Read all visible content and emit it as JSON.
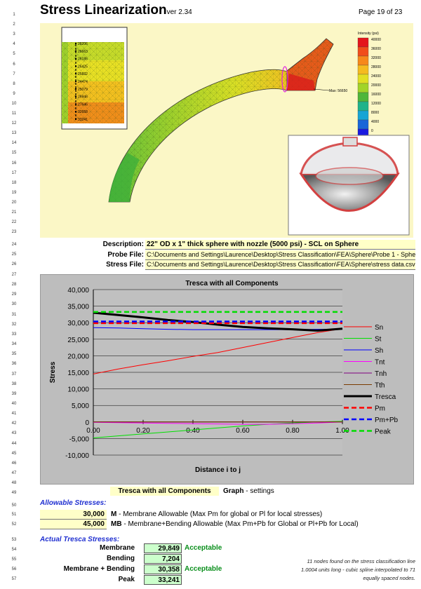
{
  "header": {
    "title": "Stress Linearization",
    "version": "ver 2.34",
    "page": "Page 19 of 23"
  },
  "row_numbers": [
    "1",
    "2",
    "3",
    "4",
    "5",
    "6",
    "7",
    "8",
    "9",
    "10",
    "11",
    "12",
    "13",
    "14",
    "15",
    "16",
    "17",
    "18",
    "19",
    "20",
    "21",
    "22",
    "23",
    "24",
    "25",
    "26",
    "27",
    "28",
    "29",
    "30",
    "31",
    "32",
    "33",
    "34",
    "35",
    "36",
    "37",
    "38",
    "39",
    "40",
    "41",
    "42",
    "43",
    "44",
    "45",
    "46",
    "47",
    "48",
    "49",
    "50",
    "51",
    "52",
    "53",
    "54",
    "55",
    "56",
    "57"
  ],
  "fea_image": {
    "legend_title": "Intensity (psi)",
    "legend_ticks": [
      "40000",
      "36000",
      "32000",
      "28000",
      "24000",
      "20000",
      "16000",
      "12000",
      "8000",
      "4000",
      "0"
    ],
    "legend_colors": [
      "#e4151c",
      "#f14d1a",
      "#f7881a",
      "#f5bb1f",
      "#e2df23",
      "#a2d428",
      "#4fb63a",
      "#1fb38a",
      "#17a4d4",
      "#1a66d8",
      "#1a1ae0"
    ],
    "max_label": "Max: 56650",
    "node_labels": [
      "28206",
      "26663",
      "26185",
      "26425",
      "25832",
      "24474",
      "25079",
      "26946",
      "27646",
      "32658",
      "33241"
    ]
  },
  "fields": {
    "description_label": "Description:",
    "description_value": "22\" OD x 1\" thick sphere with nozzle (5000 psi) - SCL on Sphere",
    "probe_label": "Probe File:",
    "probe_value": "C:\\Documents and Settings\\Laurence\\Desktop\\Stress Classification\\FEA\\Sphere\\Probe 1 - Sphere.csv",
    "stress_label": "Stress File:",
    "stress_value": "C:\\Documents and Settings\\Laurence\\Desktop\\Stress Classification\\FEA\\Sphere\\stress data.csv"
  },
  "chart_data": {
    "type": "line",
    "title": "Tresca with all Components",
    "xlabel": "Distance i to j",
    "ylabel": "Stress",
    "xlim": [
      0,
      1
    ],
    "ylim": [
      -10000,
      40000
    ],
    "x_ticks": [
      "0.00",
      "0.20",
      "0.40",
      "0.60",
      "0.80",
      "1.00"
    ],
    "y_ticks": [
      "40,000",
      "35,000",
      "30,000",
      "25,000",
      "20,000",
      "15,000",
      "10,000",
      "5,000",
      "0",
      "-5,000",
      "-10,000"
    ],
    "grid": "horizontal",
    "legend_position": "right",
    "x": [
      0,
      0.1,
      0.2,
      0.3,
      0.4,
      0.5,
      0.6,
      0.7,
      0.8,
      0.9,
      1.0
    ],
    "series": [
      {
        "name": "Sn",
        "color": "#ff0000",
        "dash": false,
        "width": 1,
        "values": [
          14500,
          16000,
          17300,
          18500,
          19800,
          21000,
          22500,
          24000,
          25500,
          27000,
          28200
        ]
      },
      {
        "name": "St",
        "color": "#00e000",
        "dash": false,
        "width": 1,
        "values": [
          -4800,
          -4200,
          -3600,
          -3000,
          -2400,
          -1800,
          -1200,
          -700,
          -300,
          0,
          200
        ]
      },
      {
        "name": "Sh",
        "color": "#0000ff",
        "dash": false,
        "width": 1,
        "values": [
          28500,
          28400,
          28200,
          28000,
          27900,
          27900,
          27900,
          27900,
          27900,
          28000,
          28000
        ]
      },
      {
        "name": "Tnt",
        "color": "#ff00ff",
        "dash": false,
        "width": 1,
        "values": [
          -100,
          -200,
          -300,
          -400,
          -500,
          -600,
          -700,
          -700,
          -500,
          -300,
          0
        ]
      },
      {
        "name": "Tnh",
        "color": "#800080",
        "dash": false,
        "width": 1,
        "values": [
          0,
          0,
          -50,
          -50,
          -50,
          0,
          0,
          0,
          0,
          0,
          0
        ]
      },
      {
        "name": "Tth",
        "color": "#7a3b00",
        "dash": false,
        "width": 1,
        "values": [
          0,
          0,
          0,
          0,
          0,
          0,
          0,
          0,
          0,
          0,
          0
        ]
      },
      {
        "name": "Tresca",
        "color": "#000000",
        "dash": false,
        "width": 3,
        "values": [
          33000,
          32300,
          31600,
          30800,
          30200,
          29400,
          28700,
          28300,
          28000,
          27600,
          28200
        ]
      },
      {
        "name": "Pm",
        "color": "#ff0000",
        "dash": true,
        "width": 2.5,
        "values": [
          29849,
          29849,
          29849,
          29849,
          29849,
          29849,
          29849,
          29849,
          29849,
          29849,
          29849
        ]
      },
      {
        "name": "Pm+Pb",
        "color": "#0000ff",
        "dash": true,
        "width": 2.5,
        "values": [
          30358,
          30358,
          30358,
          30358,
          30358,
          30358,
          30358,
          30358,
          30358,
          30358,
          30358
        ]
      },
      {
        "name": "Peak",
        "color": "#00dd00",
        "dash": true,
        "width": 2.5,
        "values": [
          33241,
          33241,
          33241,
          33241,
          33241,
          33241,
          33241,
          33241,
          33241,
          33241,
          33241
        ]
      }
    ]
  },
  "chart_selector": {
    "value": "Tresca with all Components",
    "label_bold": "Graph",
    "label_rest": " - settings"
  },
  "allowable": {
    "heading": "Allowable Stresses:",
    "rows": [
      {
        "value": "30,000",
        "code": "M",
        "text": " - Membrane Allowable (Max Pm for global or Pl for local stresses)"
      },
      {
        "value": "45,000",
        "code": "MB",
        "text": " - Membrane+Bending Allowable (Max Pm+Pb for Global or Pl+Pb for Local)"
      }
    ]
  },
  "actual": {
    "heading": "Actual Tresca Stresses:",
    "rows": [
      {
        "label": "Membrane",
        "value": "29,849",
        "status": "Acceptable"
      },
      {
        "label": "Bending",
        "value": "7,204",
        "status": ""
      },
      {
        "label": "Membrane + Bending",
        "value": "30,358",
        "status": "Acceptable"
      },
      {
        "label": "Peak",
        "value": "33,241",
        "status": ""
      }
    ]
  },
  "note": {
    "line1": "11 nodes found on the stress classification line",
    "line2": "1.0004 units long - cubic spline interpolated to 71",
    "line3": "equally spaced nodes."
  }
}
